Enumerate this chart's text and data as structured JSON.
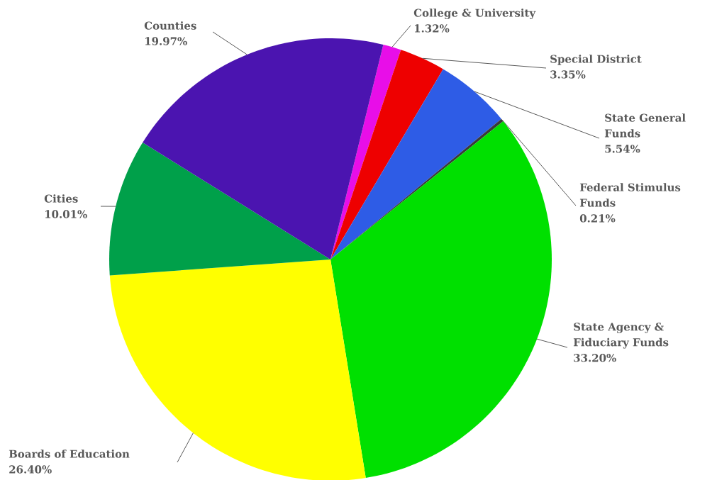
{
  "chart_data": {
    "type": "pie",
    "categories": [
      "College & University",
      "Special District",
      "State General Funds",
      "Federal Stimulus Funds",
      "State Agency & Fiduciary Funds",
      "Boards of Education",
      "Cities",
      "Counties"
    ],
    "values": [
      1.32,
      3.35,
      5.54,
      0.21,
      33.2,
      26.4,
      10.01,
      19.97
    ],
    "colors": [
      "#e80ee8",
      "#ee0000",
      "#2e5ce6",
      "#3a3a3a",
      "#00e000",
      "#ffff00",
      "#00a04a",
      "#4b14b0"
    ],
    "value_labels": [
      "1.32%",
      "3.35%",
      "5.54%",
      "0.21%",
      "33.20%",
      "26.40%",
      "10.01%",
      "19.97%"
    ]
  }
}
